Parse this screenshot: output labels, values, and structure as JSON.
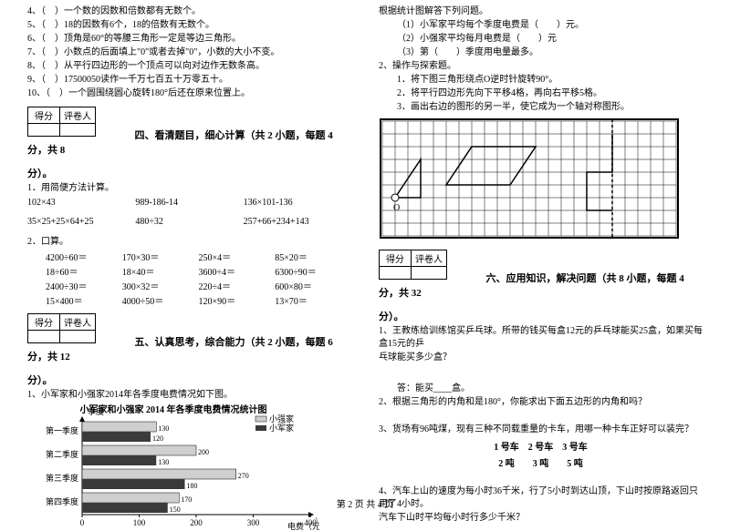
{
  "left": {
    "tf_items": [
      "4、（　）一个数的因数和倍数都有无数个。",
      "5、（　）18的因数有6个，18的倍数有无数个。",
      "6、（　）顶角是60°的等腰三角形一定是等边三角形。",
      "7、（　）小数点的后面填上\"0\"或者去掉\"0\"，小数的大小不变。",
      "8、（　）从平行四边形的一个顶点可以向对边作无数条高。",
      "9、（　）17500050读作一千万七百五十万零五十。",
      "10、（　）一个圆围绕圆心旋转180°后还在原来位置上。"
    ],
    "score_header": [
      "得分",
      "评卷人"
    ],
    "sec4_title": "四、看清题目，细心计算（共 2 小题，每题 4 分，共 8",
    "sec_close": "分）。",
    "q1_label": "1．用简便方法计算。",
    "calc_row1": [
      "102×43",
      "989-186-14",
      "136×101-136"
    ],
    "calc_row2": [
      "35×25+25×64+25",
      "480÷32",
      "257+66+234+143"
    ],
    "q2_label": "2．口算。",
    "oral": [
      [
        "4200÷60＝",
        "170×30＝",
        "250×4＝",
        "85×20＝"
      ],
      [
        "18÷60＝",
        "18×40＝",
        "3600÷4＝",
        "6300÷90＝"
      ],
      [
        "2400÷30＝",
        "300×32＝",
        "220÷4＝",
        "600×80＝"
      ],
      [
        "15×400＝",
        "4000÷50＝",
        "120×90＝",
        "13×70＝"
      ]
    ],
    "sec5_title": "五、认真思考，综合能力（共 2 小题，每题 6 分，共 12",
    "q5_1": "1、小军家和小强家2014年各季度电费情况如下图。",
    "chart": {
      "title": "小军家和小强家 2014 年各季度电费情况统计图",
      "legend": [
        "小强家",
        "小军家"
      ],
      "categories": [
        "第一季度",
        "第二季度",
        "第三季度",
        "第四季度"
      ],
      "series_light": [
        130,
        200,
        270,
        170
      ],
      "series_dark": [
        120,
        130,
        180,
        150
      ],
      "xmax": 400,
      "xticks": [
        0,
        100,
        200,
        300,
        400
      ],
      "xlabel": "电费（元）",
      "ylabel": "季度",
      "colors": {
        "light": "#cfcfcf",
        "dark": "#3a3a3a",
        "axis": "#000",
        "bg": "#ffffff"
      }
    }
  },
  "right": {
    "intro": "根据统计图解答下列问题。",
    "q_items": [
      "（1）小军家平均每个季度电费是（　　）元。",
      "（2）小强家平均每月电费是（　　）元",
      "（3）第（　　）季度用电量最多。"
    ],
    "q2_label": "2、操作与探索题。",
    "q2_items": [
      "1．将下图三角形绕点O逆时针旋转90°。",
      "2．将平行四边形先向下平移4格，再向右平移5格。",
      "3．画出右边的图形的另一半，使它成为一个轴对称图形。"
    ],
    "grid": {
      "cols": 23,
      "rows": 9,
      "cell": 14,
      "triangle": [
        [
          1,
          6
        ],
        [
          3,
          6
        ],
        [
          3,
          3
        ]
      ],
      "triangle_O_label": "O",
      "parallelogram": [
        [
          7,
          2
        ],
        [
          12,
          2
        ],
        [
          10,
          5
        ],
        [
          5,
          5
        ]
      ],
      "sym_axis_col": 18,
      "sym_shape": [
        [
          18,
          1
        ],
        [
          18,
          4
        ],
        [
          16,
          4
        ],
        [
          16,
          7
        ],
        [
          18,
          7
        ]
      ],
      "colors": {
        "grid": "#000",
        "shape": "#000",
        "axis": "#000"
      }
    },
    "score_header": [
      "得分",
      "评卷人"
    ],
    "sec6_title": "六、应用知识，解决问题（共 8 小题，每题 4 分，共 32",
    "sec_close": "分）。",
    "q6_1a": "1、王教练给训练馆买乒乓球。所带的钱买每盒12元的乒乓球能买25盒，如果买每盒15元的乒",
    "q6_1b": "乓球能买多少盒？",
    "ans_label": "答：能买____盒。",
    "q6_2a": "2、根据三角形的内角和是180°，你能求出下面五边形的内角和吗？",
    "q6_3a": "3、货场有96吨煤，现有三种不同载重量的卡车，用哪一种卡车正好可以装完？",
    "trucks_h": "1 号车　2 号车　3 号车",
    "trucks_v": "2 吨　　3 吨　　5 吨",
    "q6_4a": "4、汽车上山的速度为每小时36千米，行了5小时到达山顶，下山时按原路返回只用了4小时。",
    "q6_4b": "汽车下山时平均每小时行多少千米？"
  },
  "footer": "第 2 页 共 4 页"
}
